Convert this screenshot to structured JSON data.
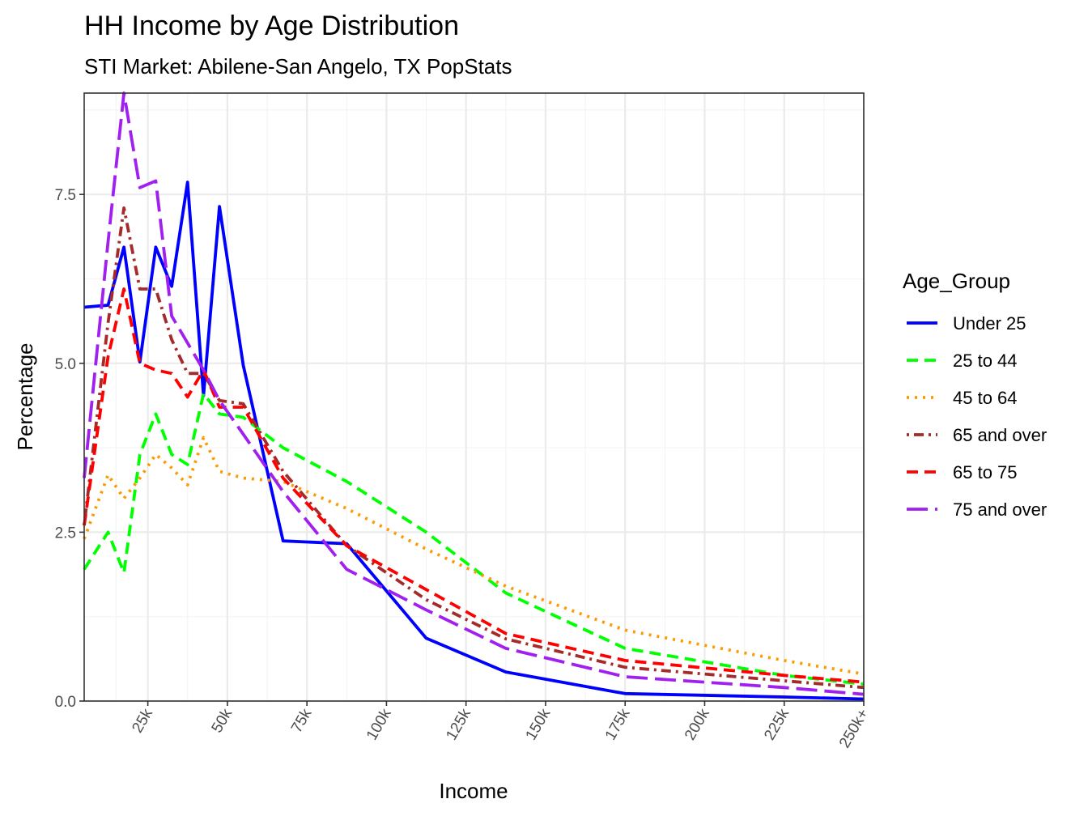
{
  "chart_data": {
    "type": "line",
    "title": "HH Income by Age Distribution",
    "subtitle": "STI Market: Abilene-San Angelo, TX PopStats",
    "xlabel": "Income",
    "ylabel": "Percentage",
    "xlim": [
      5000,
      250000
    ],
    "ylim": [
      0,
      9
    ],
    "x_ticks": [
      25000,
      50000,
      75000,
      100000,
      125000,
      150000,
      175000,
      200000,
      225000,
      250000
    ],
    "x_tick_labels": [
      "25k",
      "50k",
      "75k",
      "100k",
      "125k",
      "150k",
      "175k",
      "200k",
      "225k",
      "250k+"
    ],
    "y_ticks": [
      0,
      2.5,
      5,
      7.5
    ],
    "y_tick_labels": [
      "0.0",
      "2.5",
      "5.0",
      "7.5"
    ],
    "grid": true,
    "legend_title": "Age_Group",
    "legend_position": "right",
    "x": [
      5000,
      12500,
      17500,
      22500,
      27500,
      32500,
      37500,
      42500,
      47500,
      55000,
      67500,
      87500,
      112500,
      137500,
      175000,
      225000,
      250000
    ],
    "series": [
      {
        "name": "Under 25",
        "color": "#0000ff",
        "dash": "solid",
        "values": [
          5.83,
          5.86,
          6.72,
          5.02,
          6.72,
          6.14,
          7.68,
          4.52,
          7.32,
          4.97,
          2.37,
          2.33,
          0.93,
          0.43,
          0.11,
          0.06,
          0.03
        ]
      },
      {
        "name": "25 to 44",
        "color": "#00ff00",
        "dash": "dashed",
        "values": [
          1.95,
          2.5,
          1.9,
          3.65,
          4.25,
          3.65,
          3.5,
          4.55,
          4.25,
          4.2,
          3.75,
          3.25,
          2.5,
          1.6,
          0.78,
          0.38,
          0.25
        ]
      },
      {
        "name": "45 to 64",
        "color": "#ff9900",
        "dash": "dotted",
        "values": [
          2.4,
          3.35,
          3.0,
          3.3,
          3.65,
          3.45,
          3.2,
          3.9,
          3.4,
          3.3,
          3.25,
          2.85,
          2.25,
          1.7,
          1.05,
          0.6,
          0.4
        ]
      },
      {
        "name": "65 and over",
        "color": "#a52a2a",
        "dash": "dotdash",
        "values": [
          2.6,
          5.6,
          7.3,
          6.1,
          6.1,
          5.35,
          4.85,
          4.85,
          4.45,
          4.4,
          3.4,
          2.3,
          1.5,
          0.92,
          0.5,
          0.3,
          0.2
        ]
      },
      {
        "name": "65 to 75",
        "color": "#ff0000",
        "dash": "dashed",
        "values": [
          2.6,
          5.1,
          6.1,
          5.0,
          4.9,
          4.85,
          4.5,
          4.9,
          4.35,
          4.35,
          3.3,
          2.3,
          1.65,
          1.0,
          0.6,
          0.38,
          0.28
        ]
      },
      {
        "name": "75 and over",
        "color": "#a020f0",
        "dash": "longdash",
        "values": [
          3.3,
          6.8,
          9.0,
          7.6,
          7.7,
          5.7,
          5.3,
          4.9,
          4.45,
          3.95,
          3.1,
          1.95,
          1.35,
          0.78,
          0.36,
          0.2,
          0.1
        ]
      }
    ]
  }
}
